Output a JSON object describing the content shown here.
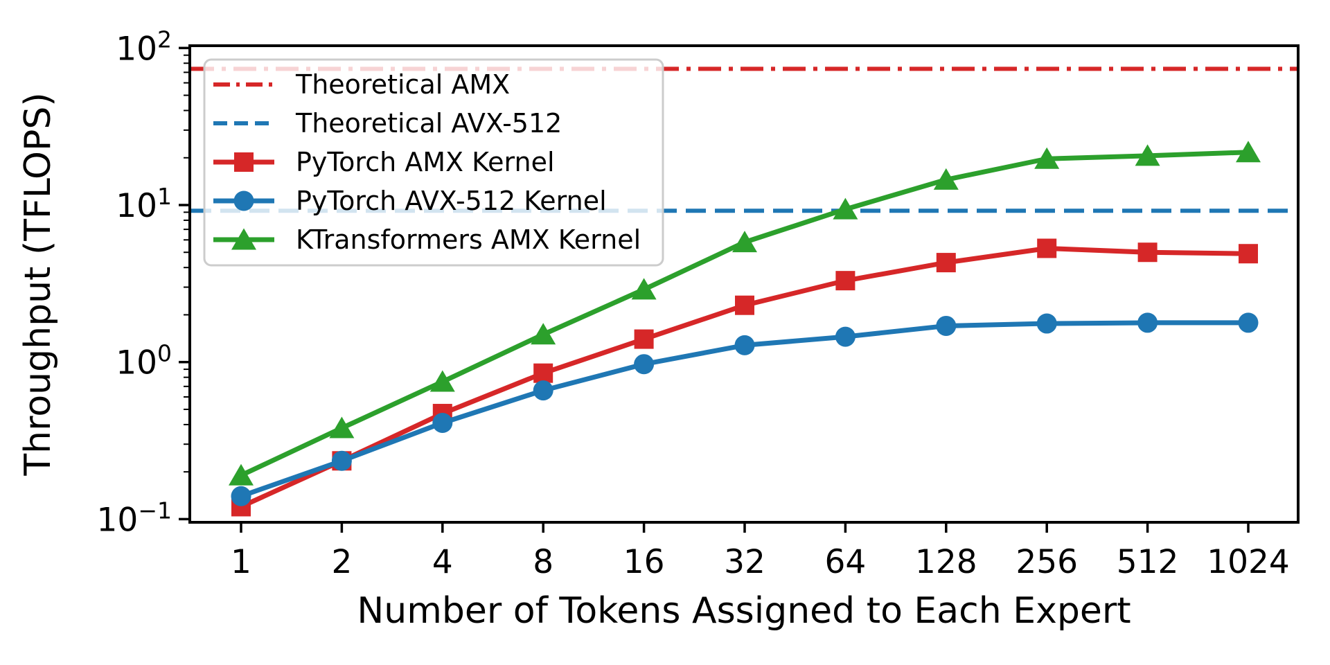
{
  "figure": {
    "background": "#ffffff"
  },
  "chart_data": {
    "type": "line",
    "title": "",
    "xlabel": "Number of Tokens Assigned to Each Expert",
    "ylabel": "Throughput (TFLOPS)",
    "x_scale": "log2",
    "y_scale": "log10",
    "grid": false,
    "legend_position": "upper left",
    "x": [
      1,
      2,
      4,
      8,
      16,
      32,
      64,
      128,
      256,
      512,
      1024
    ],
    "x_tick_labels": [
      "1",
      "2",
      "4",
      "8",
      "16",
      "32",
      "64",
      "128",
      "256",
      "512",
      "1024"
    ],
    "y_ticks": [
      {
        "value": 0.1,
        "base": "10",
        "exponent": "−1"
      },
      {
        "value": 1,
        "base": "10",
        "exponent": "0"
      },
      {
        "value": 10,
        "base": "10",
        "exponent": "1"
      },
      {
        "value": 100,
        "base": "10",
        "exponent": "2"
      }
    ],
    "ylim": [
      0.096,
      102
    ],
    "xlim": [
      0.707,
      1448
    ],
    "hlines": [
      {
        "label": "Theoretical AMX",
        "value": 73.7,
        "color": "#d62728",
        "linestyle": "dashdot"
      },
      {
        "label": "Theoretical AVX-512",
        "value": 9.2,
        "color": "#1f77b4",
        "linestyle": "dashed"
      }
    ],
    "series": [
      {
        "name": "PyTorch AMX Kernel",
        "color": "#d62728",
        "marker": "square",
        "values": [
          0.12,
          0.235,
          0.47,
          0.85,
          1.4,
          2.3,
          3.3,
          4.3,
          5.3,
          5.0,
          4.9
        ]
      },
      {
        "name": "PyTorch AVX-512 Kernel",
        "color": "#1f77b4",
        "marker": "circle",
        "values": [
          0.14,
          0.235,
          0.41,
          0.66,
          0.97,
          1.28,
          1.45,
          1.7,
          1.76,
          1.78,
          1.78
        ]
      },
      {
        "name": "KTransformers AMX Kernel",
        "color": "#2ca02c",
        "marker": "triangle",
        "values": [
          0.19,
          0.38,
          0.75,
          1.5,
          2.9,
          5.8,
          9.4,
          14.5,
          19.7,
          20.6,
          21.7
        ]
      }
    ]
  }
}
